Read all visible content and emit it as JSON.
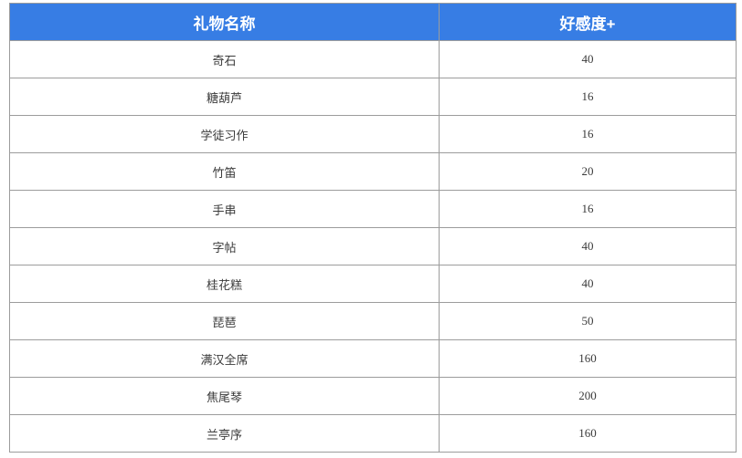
{
  "colors": {
    "page_bg": "#FFFFFF",
    "header_bg": "#377DE4",
    "header_text": "#FFFFFF",
    "border": "#9C9C9C",
    "body_text": "#3A3A3A"
  },
  "table": {
    "columns": [
      {
        "label": "礼物名称"
      },
      {
        "label": "好感度+"
      }
    ],
    "rows": [
      {
        "name": "奇石",
        "favor": "40"
      },
      {
        "name": "糖葫芦",
        "favor": "16"
      },
      {
        "name": "学徒习作",
        "favor": "16"
      },
      {
        "name": "竹笛",
        "favor": "20"
      },
      {
        "name": "手串",
        "favor": "16"
      },
      {
        "name": "字帖",
        "favor": "40"
      },
      {
        "name": "桂花糕",
        "favor": "40"
      },
      {
        "name": "琵琶",
        "favor": "50"
      },
      {
        "name": "满汉全席",
        "favor": "160"
      },
      {
        "name": "焦尾琴",
        "favor": "200"
      },
      {
        "name": "兰亭序",
        "favor": "160"
      }
    ]
  },
  "chart_data": {
    "type": "table",
    "title": "",
    "columns": [
      "礼物名称",
      "好感度+"
    ],
    "rows": [
      [
        "奇石",
        40
      ],
      [
        "糖葫芦",
        16
      ],
      [
        "学徒习作",
        16
      ],
      [
        "竹笛",
        20
      ],
      [
        "手串",
        16
      ],
      [
        "字帖",
        40
      ],
      [
        "桂花糕",
        40
      ],
      [
        "琵琶",
        50
      ],
      [
        "满汉全席",
        160
      ],
      [
        "焦尾琴",
        200
      ],
      [
        "兰亭序",
        160
      ]
    ]
  }
}
